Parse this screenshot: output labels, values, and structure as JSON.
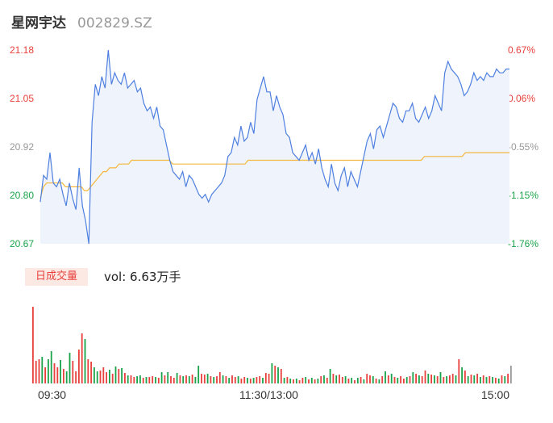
{
  "stock": {
    "name": "星网宇达",
    "code": "002829.SZ"
  },
  "volume_panel": {
    "tab_label": "日成交量",
    "vol_text": "vol: 6.63万手"
  },
  "colors": {
    "price_line": "#4e7fe0",
    "avg_line": "#f5b73b",
    "area_fill": "#eef3fc",
    "up": "#e8403c",
    "down": "#1aa34a",
    "neutral": "#999999"
  },
  "chart_data": [
    {
      "type": "line",
      "title": "",
      "y_left_ticks": [
        "21.18",
        "21.05",
        "20.92",
        "20.80",
        "20.67"
      ],
      "y_right_ticks": [
        "0.67%",
        "0.06%",
        "-0.55%",
        "-1.15%",
        "-1.76%"
      ],
      "x_ticks": [
        "09:30",
        "11:30/13:00",
        "15:00"
      ],
      "ylim": [
        20.67,
        21.18
      ],
      "series": [
        {
          "role": "price",
          "values": [
            20.78,
            20.85,
            20.84,
            20.91,
            20.83,
            20.82,
            20.84,
            20.8,
            20.77,
            20.83,
            20.79,
            20.76,
            20.87,
            20.77,
            20.73,
            20.67,
            20.99,
            21.09,
            21.06,
            21.11,
            21.08,
            21.18,
            21.09,
            21.12,
            21.1,
            21.09,
            21.12,
            21.08,
            21.09,
            21.1,
            21.07,
            21.08,
            21.04,
            21.02,
            21.03,
            21.0,
            21.03,
            20.98,
            20.97,
            20.93,
            20.89,
            20.86,
            20.85,
            20.84,
            20.86,
            20.82,
            20.85,
            20.84,
            20.82,
            20.8,
            20.79,
            20.8,
            20.78,
            20.8,
            20.81,
            20.82,
            20.83,
            20.85,
            20.9,
            20.91,
            20.95,
            20.93,
            20.98,
            20.94,
            20.95,
            20.99,
            20.96,
            21.05,
            21.08,
            21.11,
            21.07,
            21.07,
            21.02,
            21.06,
            21.03,
            21.01,
            20.96,
            20.95,
            20.91,
            20.9,
            20.89,
            20.91,
            20.93,
            20.89,
            20.91,
            20.88,
            20.92,
            20.87,
            20.84,
            20.82,
            20.88,
            20.83,
            20.81,
            20.85,
            20.87,
            20.82,
            20.86,
            20.84,
            20.82,
            20.86,
            20.9,
            20.94,
            20.96,
            20.92,
            20.97,
            20.98,
            20.95,
            20.98,
            21.01,
            21.04,
            21.03,
            21.0,
            20.99,
            21.02,
            21.02,
            21.04,
            21.0,
            20.99,
            21.01,
            21.03,
            21.0,
            21.02,
            21.06,
            21.04,
            21.02,
            21.12,
            21.15,
            21.13,
            21.12,
            21.11,
            21.09,
            21.06,
            21.07,
            21.09,
            21.12,
            21.1,
            21.11,
            21.1,
            21.12,
            21.11,
            21.11,
            21.13,
            21.12,
            21.12,
            21.13,
            21.13
          ],
          "note": ""
        },
        {
          "role": "average",
          "values": [
            20.79,
            20.82,
            20.83,
            20.83,
            20.83,
            20.83,
            20.83,
            20.83,
            20.82,
            20.82,
            20.82,
            20.82,
            20.82,
            20.82,
            20.81,
            20.81,
            20.82,
            20.83,
            20.84,
            20.85,
            20.86,
            20.86,
            20.87,
            20.87,
            20.87,
            20.88,
            20.88,
            20.88,
            20.88,
            20.89,
            20.89,
            20.89,
            20.89,
            20.89,
            20.89,
            20.89,
            20.89,
            20.89,
            20.89,
            20.89,
            20.89,
            20.89,
            20.88,
            20.88,
            20.88,
            20.88,
            20.88,
            20.88,
            20.88,
            20.88,
            20.88,
            20.88,
            20.88,
            20.88,
            20.88,
            20.88,
            20.88,
            20.88,
            20.88,
            20.88,
            20.88,
            20.88,
            20.88,
            20.88,
            20.88,
            20.88,
            20.89,
            20.89,
            20.89,
            20.89,
            20.89,
            20.89,
            20.89,
            20.89,
            20.89,
            20.89,
            20.89,
            20.89,
            20.89,
            20.89,
            20.89,
            20.89,
            20.89,
            20.89,
            20.89,
            20.89,
            20.89,
            20.89,
            20.89,
            20.89,
            20.89,
            20.89,
            20.89,
            20.89,
            20.89,
            20.89,
            20.89,
            20.89,
            20.89,
            20.89,
            20.89,
            20.89,
            20.89,
            20.89,
            20.89,
            20.89,
            20.89,
            20.89,
            20.89,
            20.89,
            20.89,
            20.89,
            20.89,
            20.89,
            20.89,
            20.89,
            20.89,
            20.89,
            20.89,
            20.89,
            20.89,
            20.89,
            20.9,
            20.9,
            20.9,
            20.9,
            20.9,
            20.9,
            20.9,
            20.9,
            20.9,
            20.9,
            20.9,
            20.9,
            20.9,
            20.91,
            20.91,
            20.91,
            20.91,
            20.91,
            20.91,
            20.91,
            20.91,
            20.91,
            20.91,
            20.91,
            20.91,
            20.91,
            20.91,
            20.91
          ]
        }
      ]
    },
    {
      "type": "bar",
      "title": "日成交量",
      "values": [
        95,
        28,
        30,
        33,
        20,
        30,
        40,
        25,
        20,
        29,
        18,
        15,
        38,
        28,
        15,
        42,
        62,
        55,
        30,
        27,
        20,
        15,
        16,
        20,
        14,
        17,
        12,
        21,
        18,
        19,
        13,
        10,
        10,
        8,
        9,
        10,
        7,
        8,
        8,
        9,
        8,
        7,
        14,
        10,
        14,
        9,
        7,
        13,
        10,
        9,
        10,
        9,
        11,
        8,
        22,
        12,
        11,
        12,
        9,
        8,
        9,
        14,
        10,
        9,
        7,
        10,
        8,
        9,
        6,
        8,
        7,
        6,
        7,
        8,
        9,
        7,
        13,
        12,
        25,
        22,
        20,
        18,
        7,
        8,
        6,
        5,
        6,
        4,
        7,
        8,
        5,
        7,
        5,
        6,
        9,
        10,
        7,
        18,
        12,
        10,
        11,
        8,
        9,
        6,
        7,
        4,
        7,
        8,
        5,
        12,
        10,
        9,
        6,
        5,
        9,
        15,
        10,
        12,
        8,
        7,
        9,
        6,
        8,
        9,
        14,
        12,
        10,
        9,
        16,
        12,
        11,
        10,
        9,
        14,
        8,
        9,
        10,
        12,
        10,
        30,
        20,
        16,
        9,
        11,
        10,
        12,
        8,
        10,
        8,
        9,
        8,
        7,
        6,
        10,
        9,
        12,
        22
      ],
      "colors": [
        "up",
        "up",
        "up",
        "down",
        "up",
        "down",
        "down",
        "up",
        "up",
        "down",
        "up",
        "down",
        "down",
        "up",
        "up",
        "up",
        "up",
        "down",
        "up",
        "up",
        "down",
        "down",
        "up",
        "up",
        "up",
        "down",
        "up",
        "down",
        "up",
        "down",
        "up",
        "down",
        "up",
        "up",
        "down",
        "down",
        "up",
        "down",
        "up",
        "up",
        "down",
        "up",
        "down",
        "up",
        "down",
        "up",
        "up",
        "down",
        "up",
        "down",
        "up",
        "down",
        "up",
        "down",
        "down",
        "up",
        "up",
        "down",
        "up",
        "down",
        "up",
        "up",
        "down",
        "up",
        "down",
        "up",
        "up",
        "down",
        "up",
        "up",
        "down",
        "up",
        "down",
        "up",
        "up",
        "down",
        "up",
        "up",
        "down",
        "up",
        "down",
        "up",
        "down",
        "up",
        "down",
        "up",
        "down",
        "up",
        "up",
        "down",
        "up",
        "down",
        "up",
        "down",
        "up",
        "down",
        "up",
        "down",
        "up",
        "down",
        "up",
        "up",
        "down",
        "up",
        "down",
        "up",
        "down",
        "up",
        "down",
        "up",
        "up",
        "down",
        "up",
        "down",
        "up",
        "down",
        "up",
        "down",
        "up",
        "down",
        "up",
        "up",
        "down",
        "up",
        "down",
        "up",
        "down",
        "up",
        "up",
        "down",
        "up",
        "down",
        "up",
        "down",
        "up",
        "down",
        "up",
        "up",
        "down",
        "up",
        "down",
        "up",
        "down",
        "up",
        "down",
        "up",
        "down",
        "up",
        "down",
        "up",
        "down",
        "up",
        "down",
        "up",
        "down",
        "up",
        "neutral"
      ]
    }
  ]
}
